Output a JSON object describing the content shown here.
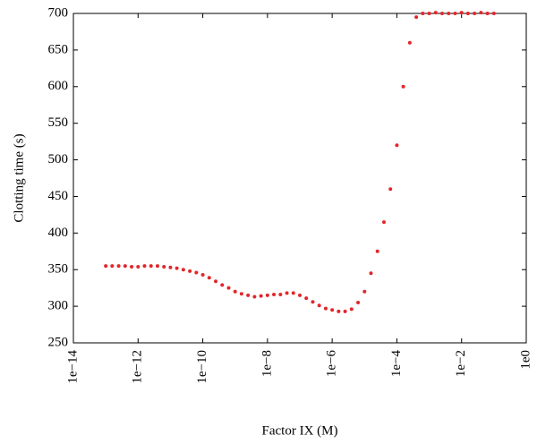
{
  "chart_data": {
    "type": "scatter",
    "x_label": "Factor IX (M)",
    "y_label": "Clotting time (s)",
    "xlog": true,
    "color": "#e3262c",
    "x": [
      1e-13,
      1.58e-13,
      2.51e-13,
      3.98e-13,
      6.31e-13,
      1e-12,
      1.58e-12,
      2.51e-12,
      3.98e-12,
      6.31e-12,
      1e-11,
      1.58e-11,
      2.51e-11,
      3.98e-11,
      6.31e-11,
      1e-10,
      1.58e-10,
      2.51e-10,
      3.98e-10,
      6.31e-10,
      1e-09,
      1.58e-09,
      2.51e-09,
      3.98e-09,
      6.31e-09,
      1e-08,
      1.58e-08,
      2.51e-08,
      3.98e-08,
      6.31e-08,
      1e-07,
      1.58e-07,
      2.51e-07,
      3.98e-07,
      6.31e-07,
      1e-06,
      1.58e-06,
      2.51e-06,
      3.98e-06,
      6.31e-06,
      1e-05,
      1.58e-05,
      2.51e-05,
      3.98e-05,
      6.31e-05,
      0.0001,
      0.000158,
      0.000251,
      0.000398,
      0.000631,
      0.001,
      0.00158,
      0.00251,
      0.00398,
      0.00631,
      0.01,
      0.0158,
      0.0251,
      0.0398,
      0.0631,
      0.1
    ],
    "values": [
      355,
      355,
      355,
      355,
      354,
      354,
      355,
      355,
      355,
      354,
      353,
      352,
      350,
      348,
      346,
      343,
      339,
      334,
      329,
      325,
      320,
      317,
      315,
      313,
      314,
      315,
      316,
      316,
      318,
      318,
      315,
      311,
      306,
      301,
      297,
      295,
      293,
      293,
      296,
      305,
      320,
      345,
      375,
      415,
      460,
      520,
      600,
      660,
      695,
      700,
      700,
      701,
      700,
      700,
      700,
      701,
      700,
      700,
      701,
      700,
      700
    ],
    "xlim": [
      1e-14,
      1
    ],
    "xticks": [
      {
        "value": 1e-14,
        "label": "1e−14"
      },
      {
        "value": 1e-12,
        "label": "1e−12"
      },
      {
        "value": 1e-10,
        "label": "1e−10"
      },
      {
        "value": 1e-08,
        "label": "1e−8"
      },
      {
        "value": 1e-06,
        "label": "1e−6"
      },
      {
        "value": 0.0001,
        "label": "1e−4"
      },
      {
        "value": 0.01,
        "label": "1e−2"
      },
      {
        "value": 1,
        "label": "1e0"
      }
    ],
    "ylim": [
      250,
      700
    ],
    "yticks": [
      250,
      300,
      350,
      400,
      450,
      500,
      550,
      600,
      650,
      700
    ]
  }
}
